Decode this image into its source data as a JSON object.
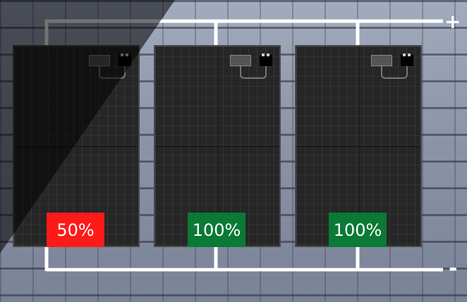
{
  "panels": [
    {
      "output": "50%",
      "status_color": "#ff1a1a",
      "shaded": true
    },
    {
      "output": "100%",
      "status_color": "#0a7a36",
      "shaded": false
    },
    {
      "output": "100%",
      "status_color": "#0a7a36",
      "shaded": false
    }
  ],
  "terminals": {
    "positive": "+",
    "negative": "-"
  },
  "colors": {
    "wire": "#ffffff",
    "panel": "#262626",
    "shadow": "rgba(0,0,0,0.55)"
  }
}
